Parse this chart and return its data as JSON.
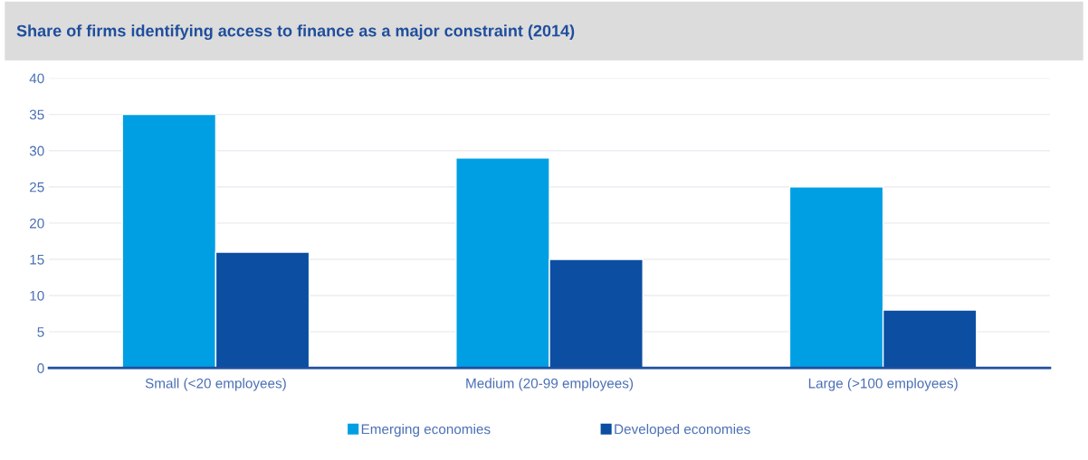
{
  "chart_data": {
    "type": "bar",
    "title": "Share of firms identifying access to finance as a major constraint (2014)",
    "categories": [
      "Small (<20 employees)",
      "Medium (20-99 employees)",
      "Large (>100 employees)"
    ],
    "series": [
      {
        "name": "Emerging economies",
        "color": "#009fe3",
        "values": [
          35,
          29,
          25
        ]
      },
      {
        "name": "Developed economies",
        "color": "#0b4ea2",
        "values": [
          16,
          15,
          8
        ]
      }
    ],
    "ylim": [
      0,
      40
    ],
    "yticks": [
      0,
      5,
      10,
      15,
      20,
      25,
      30,
      35,
      40
    ],
    "grid": "y",
    "legend": "bottom"
  }
}
